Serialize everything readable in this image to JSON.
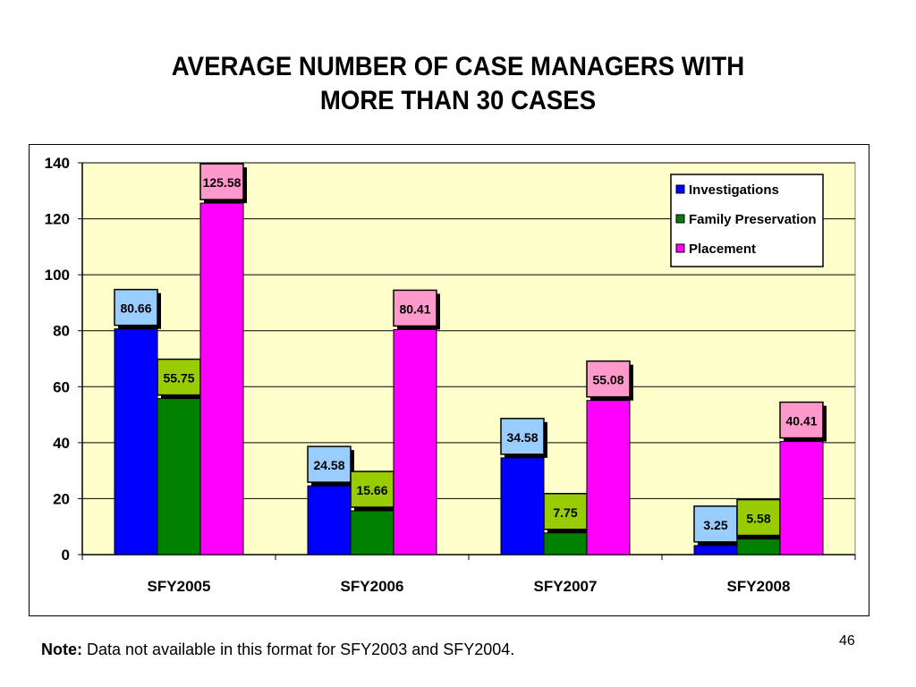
{
  "slide": {
    "title_line1": "AVERAGE NUMBER OF CASE MANAGERS WITH",
    "title_line2": "MORE THAN 30 CASES",
    "note_label": "Note:",
    "note_text": "Data not available in this format for SFY2003 and SFY2004.",
    "page_number": "46"
  },
  "chart_data": {
    "type": "bar",
    "title": "AVERAGE NUMBER OF CASE MANAGERS WITH MORE THAN 30 CASES",
    "categories": [
      "SFY2005",
      "SFY2006",
      "SFY2007",
      "SFY2008"
    ],
    "series": [
      {
        "name": "Investigations",
        "color": "#0000ff",
        "label_color": "#99ccff",
        "values": [
          80.66,
          24.58,
          34.58,
          3.25
        ],
        "labels": [
          "80.66",
          "24.58",
          "34.58",
          "3.25"
        ]
      },
      {
        "name": "Family Preservation",
        "color": "#008000",
        "label_color": "#99cc00",
        "values": [
          55.75,
          15.66,
          7.75,
          5.58
        ],
        "labels": [
          "55.75",
          "15.66",
          "7.75",
          "5.58"
        ]
      },
      {
        "name": "Placement",
        "color": "#ff00ff",
        "label_color": "#ff99cc",
        "values": [
          125.58,
          80.41,
          55.08,
          40.41
        ],
        "labels": [
          "125.58",
          "80.41",
          "55.08",
          "40.41"
        ]
      }
    ],
    "ylim": [
      0,
      140
    ],
    "yticks": [
      0,
      20,
      40,
      60,
      80,
      100,
      120,
      140
    ],
    "ytick_labels": [
      "0",
      "20",
      "40",
      "60",
      "80",
      "100",
      "120",
      "140"
    ],
    "grid": true,
    "plot_background": "#ffffcc",
    "legend_position": "top-right"
  }
}
